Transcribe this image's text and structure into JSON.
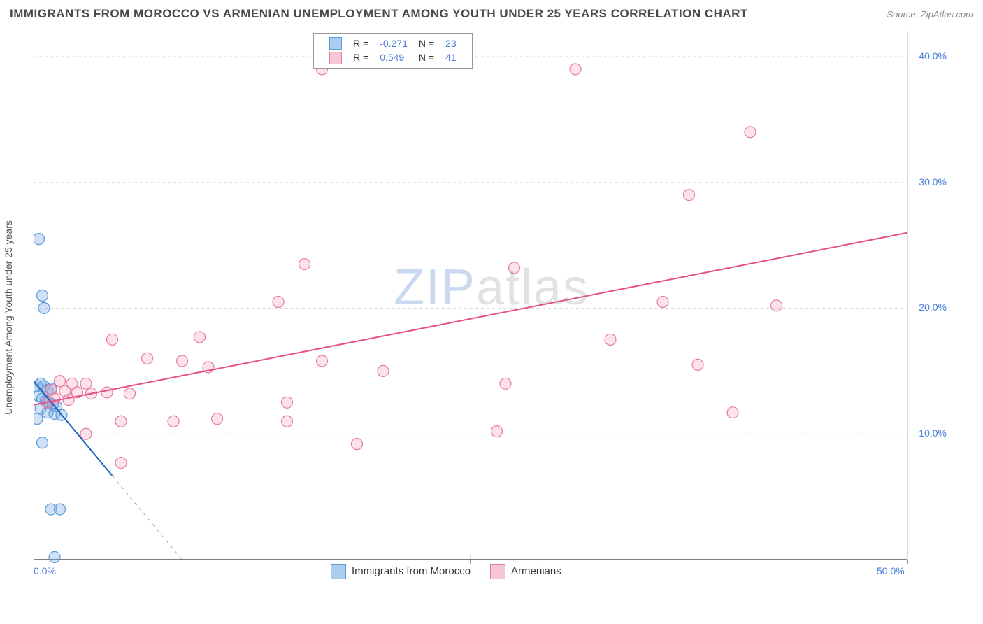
{
  "title": "IMMIGRANTS FROM MOROCCO VS ARMENIAN UNEMPLOYMENT AMONG YOUTH UNDER 25 YEARS CORRELATION CHART",
  "source": "Source: ZipAtlas.com",
  "ylabel": "Unemployment Among Youth under 25 years",
  "watermark_a": "ZIP",
  "watermark_b": "atlas",
  "chart": {
    "type": "scatter",
    "xlim": [
      0,
      50
    ],
    "ylim": [
      0,
      42
    ],
    "x_tick_values": [
      0,
      25,
      50
    ],
    "x_tick_labels": [
      "0.0%",
      "",
      "50.0%"
    ],
    "y_tick_values": [
      10,
      20,
      30,
      40
    ],
    "y_tick_labels": [
      "10.0%",
      "20.0%",
      "30.0%",
      "40.0%"
    ],
    "grid_color": "#d8d8d8",
    "axis_color": "#333333",
    "background_color": "#ffffff",
    "tick_label_color": "#4a7fd8",
    "marker_radius": 8,
    "marker_stroke_width": 1.2,
    "line_width": 2,
    "series": [
      {
        "name": "Immigrants from Morocco",
        "fill": "rgba(120,170,230,0.35)",
        "stroke": "#5a9bd8",
        "swatch_fill": "#a9cdef",
        "swatch_stroke": "#5a9bd8",
        "R": "-0.271",
        "N": "23",
        "trend": {
          "x1": 0,
          "y1": 14.2,
          "x2": 8.5,
          "y2": 0,
          "solid_until_x": 4.5,
          "color": "#1f5fbf"
        },
        "points": [
          [
            0.3,
            25.5
          ],
          [
            0.5,
            21.0
          ],
          [
            0.6,
            20.0
          ],
          [
            0.2,
            13.8
          ],
          [
            0.4,
            14.0
          ],
          [
            0.6,
            13.8
          ],
          [
            0.8,
            13.5
          ],
          [
            1.0,
            13.6
          ],
          [
            0.3,
            13.0
          ],
          [
            0.5,
            12.8
          ],
          [
            0.7,
            12.6
          ],
          [
            0.9,
            12.5
          ],
          [
            1.1,
            12.3
          ],
          [
            1.3,
            12.2
          ],
          [
            0.4,
            12.0
          ],
          [
            0.8,
            11.7
          ],
          [
            1.2,
            11.6
          ],
          [
            1.6,
            11.5
          ],
          [
            0.5,
            9.3
          ],
          [
            1.0,
            4.0
          ],
          [
            1.5,
            4.0
          ],
          [
            1.2,
            0.2
          ],
          [
            0.2,
            11.2
          ]
        ]
      },
      {
        "name": "Armenians",
        "fill": "rgba(245,160,190,0.30)",
        "stroke": "#e77aa0",
        "swatch_fill": "#f7c6d6",
        "swatch_stroke": "#e77aa0",
        "R": "0.549",
        "N": "41",
        "trend": {
          "x1": 0,
          "y1": 12.3,
          "x2": 50,
          "y2": 26.0,
          "solid_until_x": 50,
          "color": "#e94f87"
        },
        "points": [
          [
            16.5,
            39.0
          ],
          [
            31.0,
            39.0
          ],
          [
            41.0,
            34.0
          ],
          [
            37.5,
            29.0
          ],
          [
            15.5,
            23.5
          ],
          [
            27.5,
            23.2
          ],
          [
            14.0,
            20.5
          ],
          [
            42.5,
            20.2
          ],
          [
            36.0,
            20.5
          ],
          [
            4.5,
            17.5
          ],
          [
            33.0,
            17.5
          ],
          [
            9.5,
            17.7
          ],
          [
            6.5,
            16.0
          ],
          [
            8.5,
            15.8
          ],
          [
            10.0,
            15.3
          ],
          [
            16.5,
            15.8
          ],
          [
            38.0,
            15.5
          ],
          [
            27.0,
            14.0
          ],
          [
            1.5,
            14.2
          ],
          [
            2.2,
            14.0
          ],
          [
            3.0,
            14.0
          ],
          [
            1.0,
            13.5
          ],
          [
            1.8,
            13.4
          ],
          [
            2.5,
            13.3
          ],
          [
            3.3,
            13.2
          ],
          [
            4.2,
            13.3
          ],
          [
            5.5,
            13.2
          ],
          [
            1.2,
            12.8
          ],
          [
            2.0,
            12.7
          ],
          [
            0.8,
            12.5
          ],
          [
            14.5,
            12.5
          ],
          [
            5.0,
            11.0
          ],
          [
            8.0,
            11.0
          ],
          [
            10.5,
            11.2
          ],
          [
            14.5,
            11.0
          ],
          [
            26.5,
            10.2
          ],
          [
            40.0,
            11.7
          ],
          [
            3.0,
            10.0
          ],
          [
            18.5,
            9.2
          ],
          [
            5.0,
            7.7
          ],
          [
            20.0,
            15.0
          ]
        ]
      }
    ],
    "legend_bottom": [
      {
        "label": "Immigrants from Morocco",
        "series_idx": 0
      },
      {
        "label": "Armenians",
        "series_idx": 1
      }
    ]
  }
}
